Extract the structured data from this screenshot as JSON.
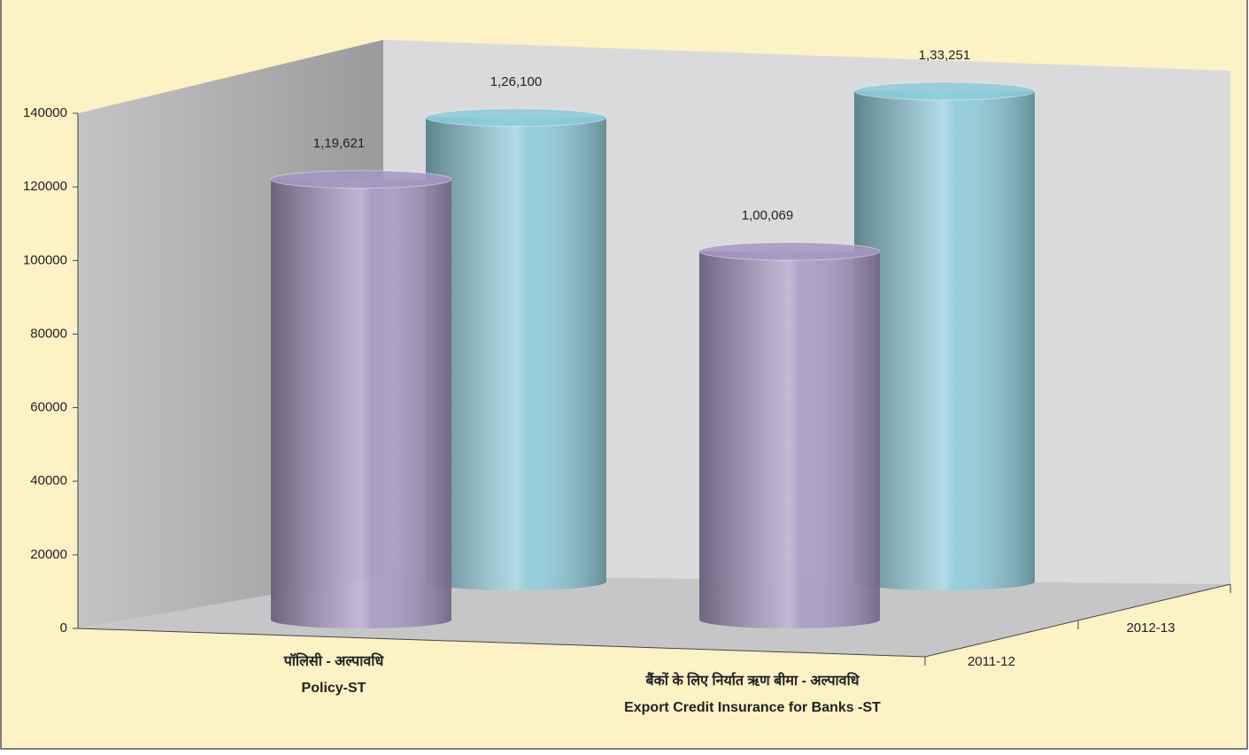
{
  "chart_data": {
    "type": "bar3d",
    "categories": [
      [
        "पॉलिसी - अल्पावधि",
        "Policy-ST"
      ],
      [
        "बैंकों के लिए निर्यात ऋण बीमा - अल्पावधि",
        "Export Credit Insurance for Banks -ST"
      ]
    ],
    "series": [
      {
        "name": "2011-12",
        "color": "#a697c2",
        "values": [
          119621,
          100069
        ],
        "value_labels": [
          "1,19,621",
          "1,00,069"
        ]
      },
      {
        "name": "2012-13",
        "color": "#8ccbd9",
        "values": [
          126100,
          133251
        ],
        "value_labels": [
          "1,26,100",
          "1,33,251"
        ]
      }
    ],
    "ylim": [
      0,
      140000
    ],
    "yticks": [
      0,
      20000,
      40000,
      60000,
      80000,
      100000,
      120000,
      140000
    ]
  }
}
